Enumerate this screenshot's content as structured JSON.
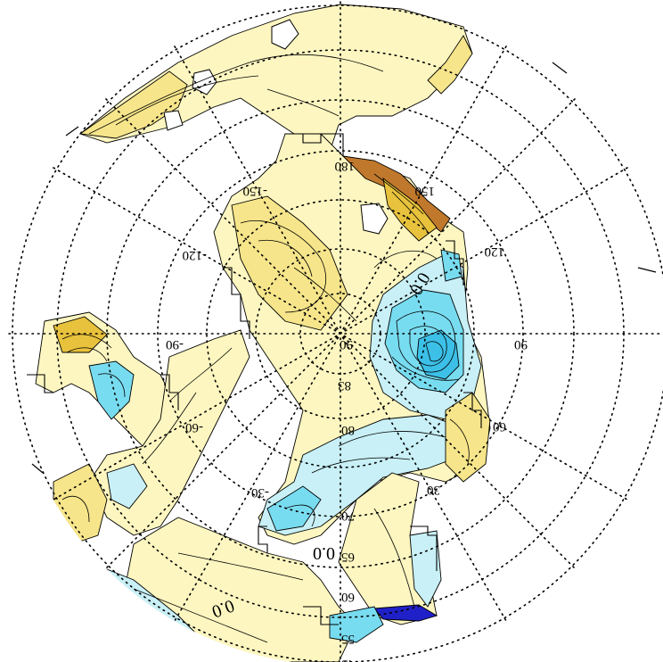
{
  "map": {
    "projection": "polar-stereographic-north (inverted)",
    "longitude_labels": [
      "150",
      "120",
      "90",
      "60",
      "30",
      "-150",
      "-120",
      "-90",
      "-60",
      "-30",
      "180"
    ],
    "latitude_labels": [
      "80",
      "70",
      "65",
      "60",
      "55",
      "45",
      "83",
      "90"
    ],
    "contour_labels": [
      "0.0",
      "0.0",
      "0.0"
    ],
    "colors": {
      "positive_light": "#fdf6c0",
      "positive_mid": "#f6e58a",
      "positive_strong": "#e8c23c",
      "positive_high": "#c0782c",
      "negative_light": "#c8f0f6",
      "negative_mid": "#78dcf0",
      "negative_strong": "#3cc0e8",
      "negative_extreme": "#2020c8",
      "grid": "#000000"
    }
  }
}
